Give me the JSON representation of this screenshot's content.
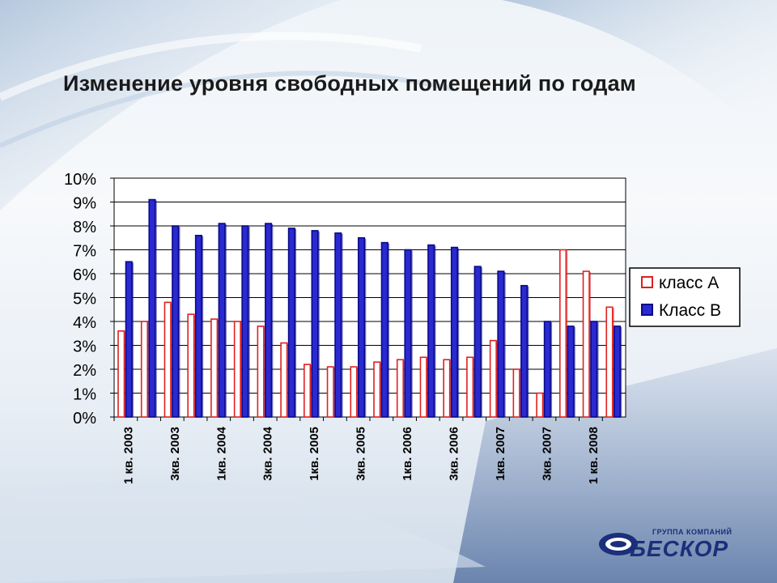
{
  "slide": {
    "title": "Изменение уровня свободных помещений по годам"
  },
  "logo": {
    "subtitle": "ГРУППА КОМПАНИЙ",
    "name": "БЕСКОР"
  },
  "colors": {
    "series_a_fill": "#ffffff",
    "series_a_edge": "#e02020",
    "series_b_fill": "#2a2ad0",
    "series_b_edge": "#0a0a8a",
    "logo_blue": "#1b2f7a"
  },
  "chart_data": {
    "type": "bar",
    "categories": [
      "1 кв. 2003",
      "",
      "3кв. 2003",
      "",
      "1кв. 2004",
      "",
      "3кв. 2004",
      "",
      "1кв. 2005",
      "",
      "3кв. 2005",
      "",
      "1кв. 2006",
      "",
      "3кв. 2006",
      "",
      "1кв. 2007",
      "",
      "3кв. 2007",
      "",
      "1 кв. 2008",
      ""
    ],
    "series": [
      {
        "name": "класс А",
        "values": [
          3.6,
          4.0,
          4.8,
          4.3,
          4.1,
          4.0,
          3.8,
          3.1,
          2.2,
          2.1,
          2.1,
          2.3,
          2.4,
          2.5,
          2.4,
          2.5,
          3.2,
          2.0,
          1.0,
          7.0,
          6.1,
          4.6
        ]
      },
      {
        "name": "Класс В",
        "values": [
          6.5,
          9.1,
          8.0,
          7.6,
          8.1,
          8.0,
          8.1,
          7.9,
          7.8,
          7.7,
          7.5,
          7.3,
          7.0,
          7.2,
          7.1,
          6.3,
          6.1,
          5.5,
          4.0,
          3.8,
          4.0,
          3.8
        ]
      }
    ],
    "yticks": [
      "0%",
      "1%",
      "2%",
      "3%",
      "4%",
      "5%",
      "6%",
      "7%",
      "8%",
      "9%",
      "10%"
    ],
    "ylim": [
      0,
      10
    ],
    "grid": true,
    "legend": "right"
  }
}
